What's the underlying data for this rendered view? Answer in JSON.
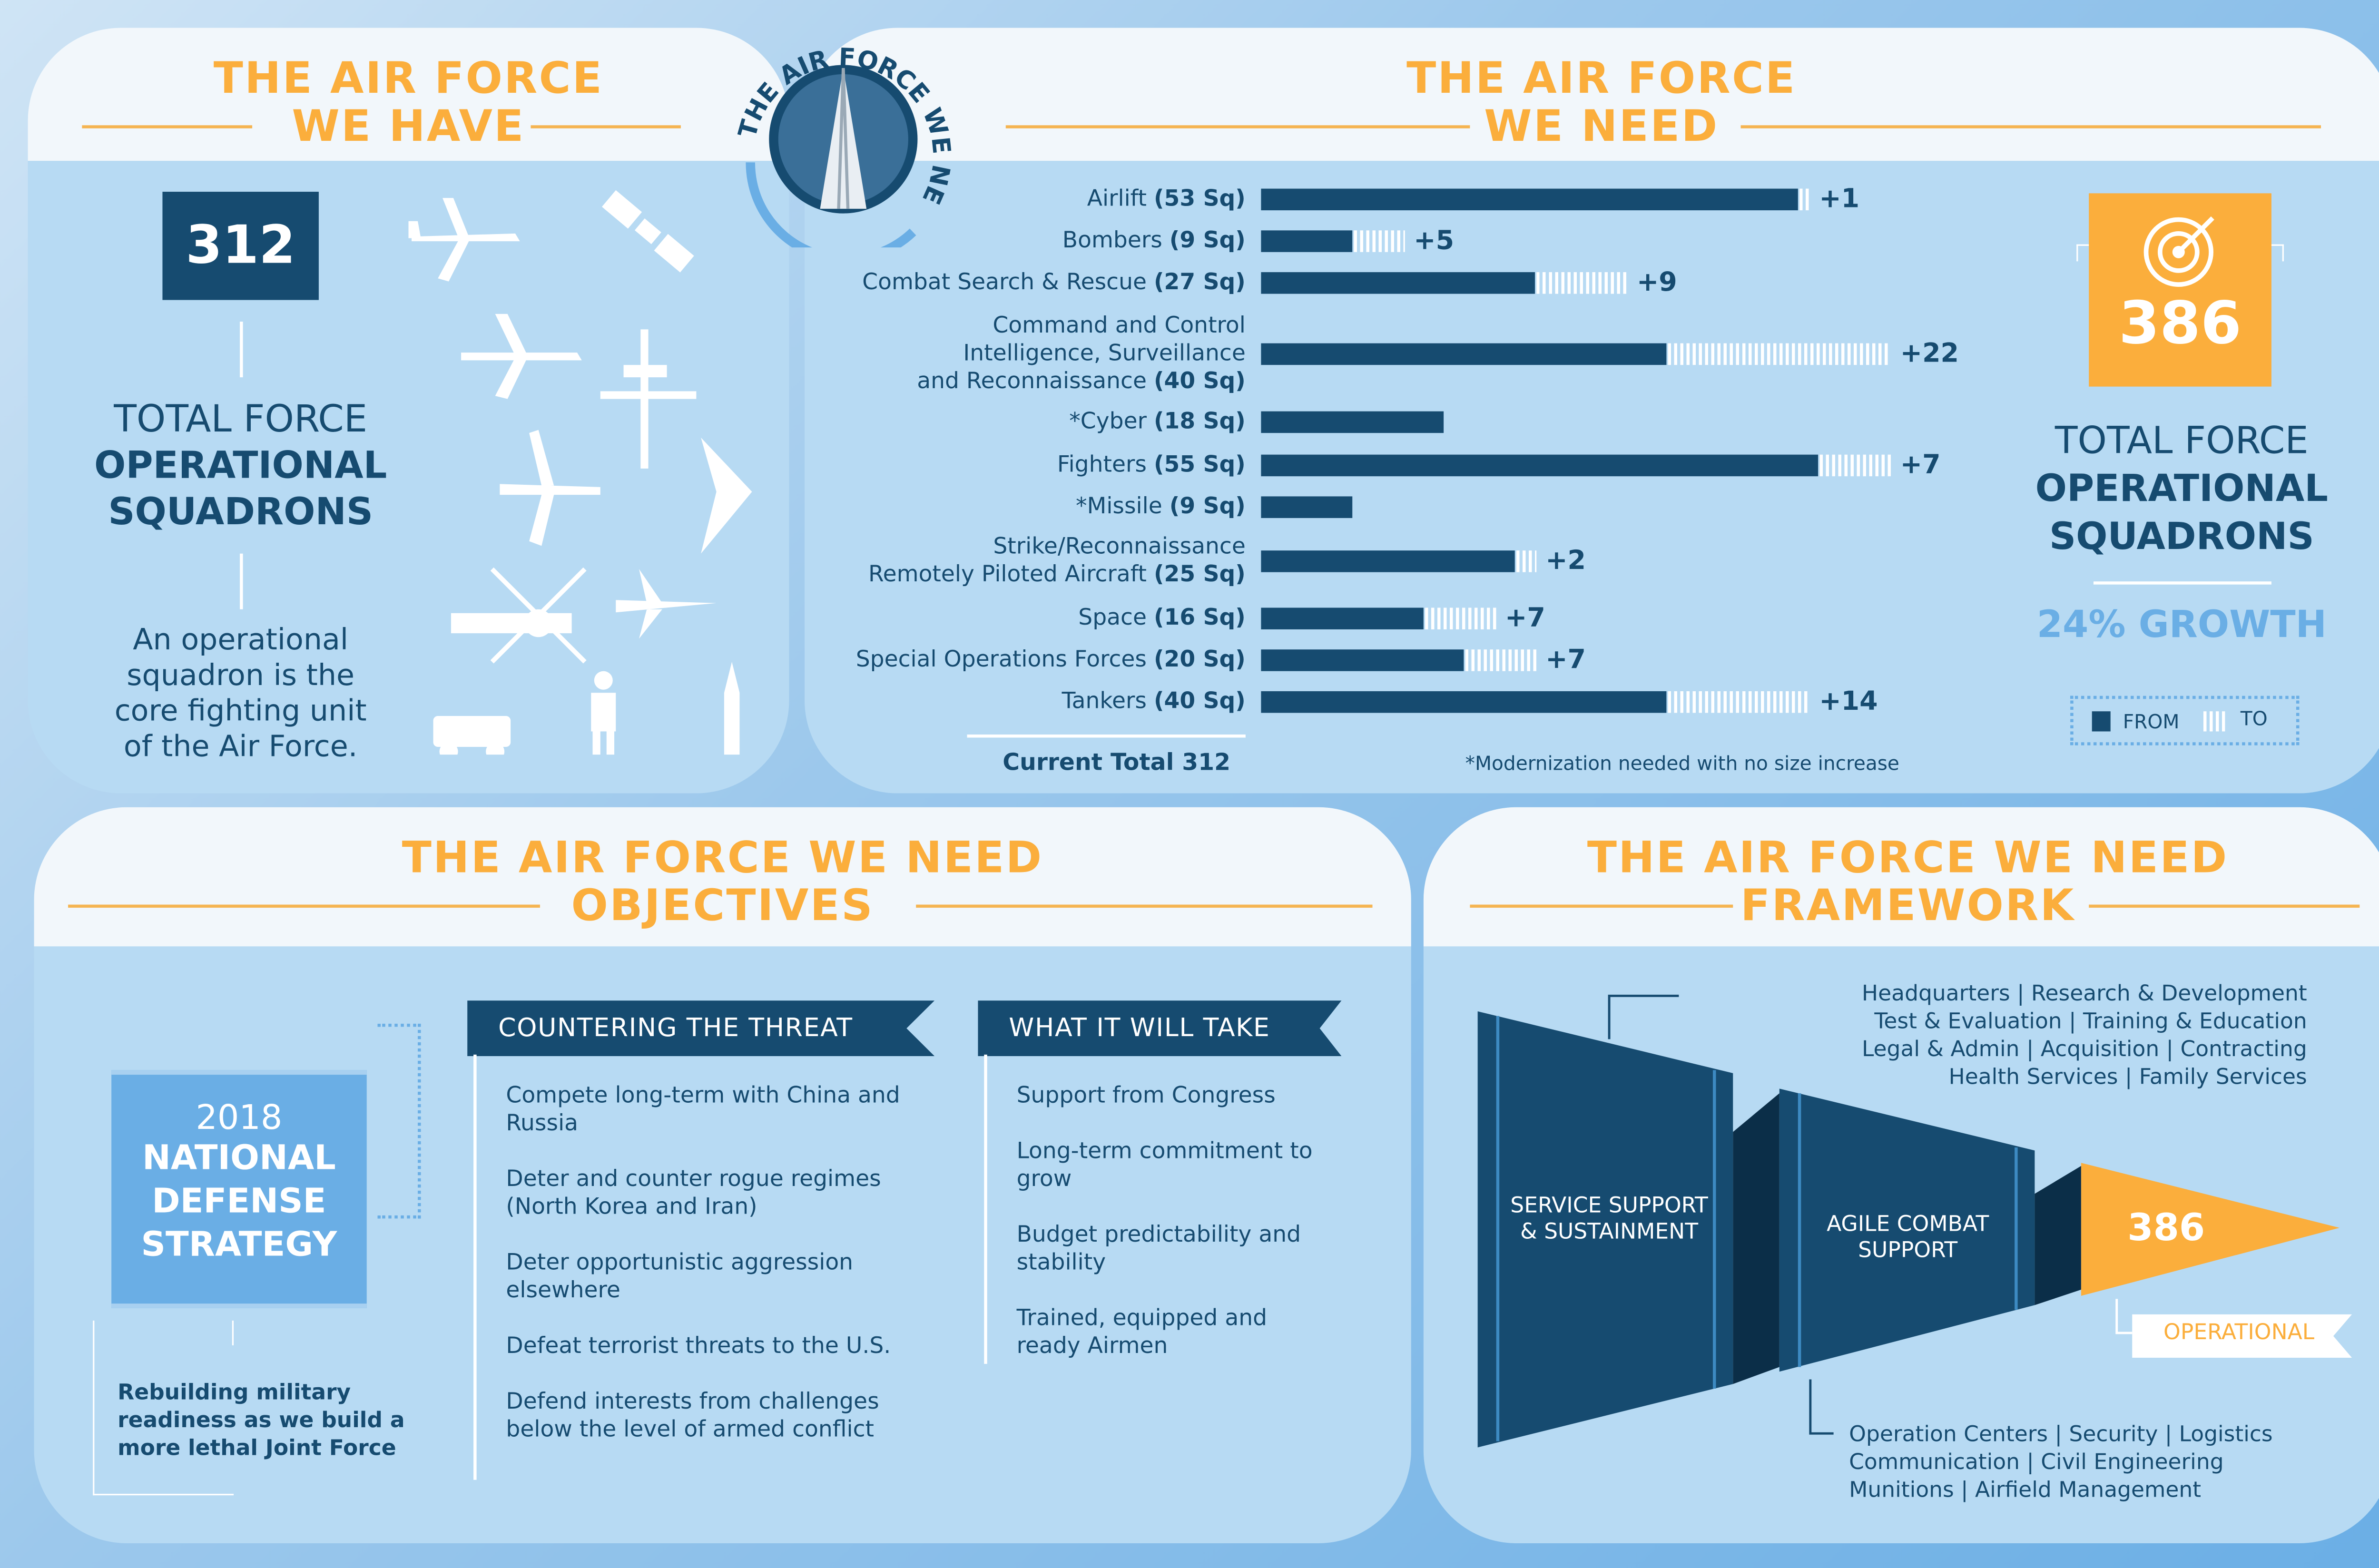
{
  "have": {
    "title1": "THE AIR FORCE",
    "title2": "WE HAVE",
    "count": "312",
    "label1": "TOTAL FORCE",
    "label2": "OPERATIONAL",
    "label3": "SQUADRONS",
    "desc": "An operational squadron is the core fighting unit of the Air Force.",
    "icons": [
      "cargo-plane-icon",
      "satellite-icon",
      "tanker-plane-icon",
      "drone-icon",
      "bomber-plane-icon",
      "stealth-bomber-icon",
      "helicopter-icon",
      "fighter-jet-icon",
      "humvee-icon",
      "soldier-icon",
      "missile-icon"
    ]
  },
  "emblem": {
    "text": "THE AIR FORCE WE NEED"
  },
  "need": {
    "title1": "THE AIR FORCE",
    "title2": "WE NEED",
    "total_label": "Current Total 312",
    "footnote": "*Modernization needed with no size increase",
    "count": "386",
    "label1": "TOTAL FORCE",
    "label2": "OPERATIONAL",
    "label3": "SQUADRONS",
    "growth": "24% GROWTH",
    "legend_from": "FROM",
    "legend_to": "TO"
  },
  "chart_data": {
    "type": "bar",
    "orientation": "horizontal",
    "stacked": true,
    "categories": [
      {
        "name": "Airlift",
        "count": "(53 Sq)"
      },
      {
        "name": "Bombers",
        "count": "(9 Sq)"
      },
      {
        "name": "Combat Search & Rescue",
        "count": "(27 Sq)"
      },
      {
        "name": "Command and Control\nIntelligence, Surveillance\nand Reconnaissance",
        "count": "(40 Sq)"
      },
      {
        "name": "*Cyber",
        "count": "(18 Sq)"
      },
      {
        "name": "Fighters",
        "count": "(55 Sq)"
      },
      {
        "name": "*Missile",
        "count": "(9 Sq)"
      },
      {
        "name": "Strike/Reconnaissance\nRemotely Piloted Aircraft",
        "count": "(25 Sq)"
      },
      {
        "name": "Space",
        "count": "(16 Sq)"
      },
      {
        "name": "Special Operations Forces",
        "count": "(20 Sq)"
      },
      {
        "name": "Tankers",
        "count": "(40 Sq)"
      }
    ],
    "series": [
      {
        "name": "FROM",
        "values": [
          53,
          9,
          27,
          40,
          18,
          55,
          9,
          25,
          16,
          20,
          40
        ],
        "color": "#164b70"
      },
      {
        "name": "TO",
        "values": [
          1,
          5,
          9,
          22,
          0,
          7,
          0,
          2,
          7,
          7,
          14
        ],
        "labels": [
          "+1",
          "+5",
          "+9",
          "+22",
          "",
          "+7",
          "",
          "+2",
          "+7",
          "+7",
          "+14"
        ],
        "color": "#ffffff"
      }
    ],
    "legend": "bottom-right"
  },
  "objectives": {
    "title1": "THE AIR FORCE WE NEED",
    "title2": "OBJECTIVES",
    "nds_year": "2018",
    "nds1": "NATIONAL",
    "nds2": "DEFENSE",
    "nds3": "STRATEGY",
    "note": "Rebuilding military readiness as we build a more lethal Joint Force",
    "threat_title": "COUNTERING THE THREAT",
    "threats": [
      "Compete long-term with China and Russia",
      "Deter and counter rogue regimes (North Korea and Iran)",
      "Deter opportunistic aggression elsewhere",
      "Defeat terrorist threats to the U.S.",
      "Defend interests from challenges below the level of armed conflict"
    ],
    "take_title": "WHAT IT WILL TAKE",
    "takes": [
      "Support from Congress",
      "Long-term commitment to grow",
      "Budget predictability and stability",
      "Trained, equipped and ready Airmen"
    ]
  },
  "framework": {
    "title1": "THE AIR FORCE WE NEED",
    "title2": "FRAMEWORK",
    "top_lines": [
      "Headquarters  |  Research & Development",
      "Test & Evaluation  |  Training & Education",
      "Legal & Admin  |  Acquisition  |  Contracting",
      "Health Services  |  Family Services"
    ],
    "stage1": "SERVICE SUPPORT & SUSTAINMENT",
    "stage2": "AGILE COMBAT SUPPORT",
    "stage3": "386",
    "stage3_label": "OPERATIONAL",
    "bottom_lines": [
      "Operation Centers  |  Security  |  Logistics",
      "Communication  |  Civil Engineering",
      "Munitions  |  Airfield Management"
    ]
  },
  "colors": {
    "navy": "#164b70",
    "orange": "#fbae3c",
    "light_blue": "#b7daf3",
    "accent_blue": "#6aaee5"
  }
}
